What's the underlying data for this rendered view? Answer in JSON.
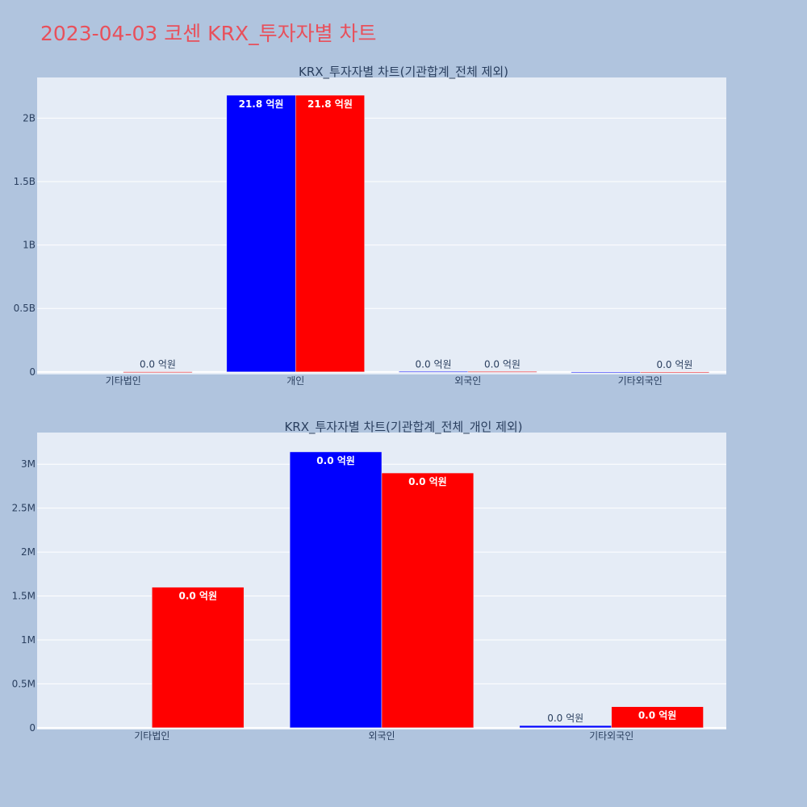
{
  "title": "2023-04-03 코센 KRX_투자자별 차트",
  "chart_data": [
    {
      "type": "bar",
      "title": "KRX_투자자별 차트(기관합계_전체 제외)",
      "categories": [
        "기타법인",
        "개인",
        "외국인",
        "기타외국인"
      ],
      "series": [
        {
          "color": "#0000ff",
          "values": [
            0,
            2180000000,
            3140000,
            25000
          ],
          "labels": [
            "",
            "21.8 억원",
            "0.0 억원",
            ""
          ]
        },
        {
          "color": "#ff0000",
          "values": [
            1600000,
            2180000000,
            2900000,
            240000
          ],
          "labels": [
            "0.0 억원",
            "21.8 억원",
            "0.0 억원",
            "0.0 억원"
          ]
        }
      ],
      "ylim": [
        -20000000,
        2320000000
      ],
      "yticks": [
        0,
        500000000,
        1000000000,
        1500000000,
        2000000000
      ],
      "yticklabels": [
        "0",
        "0.5B",
        "1B",
        "1.5B",
        "2B"
      ],
      "grid": true,
      "legend": "none"
    },
    {
      "type": "bar",
      "title": "KRX_투자자별 차트(기관합계_전체_개인 제외)",
      "categories": [
        "기타법인",
        "외국인",
        "기타외국인"
      ],
      "series": [
        {
          "color": "#0000ff",
          "values": [
            0,
            3140000,
            25000
          ],
          "labels": [
            "",
            "0.0 억원",
            "0.0 억원"
          ]
        },
        {
          "color": "#ff0000",
          "values": [
            1600000,
            2900000,
            240000
          ],
          "labels": [
            "0.0 억원",
            "0.0 억원",
            "0.0 억원"
          ]
        }
      ],
      "ylim": [
        -20000,
        3360000
      ],
      "yticks": [
        0,
        500000,
        1000000,
        1500000,
        2000000,
        2500000,
        3000000
      ],
      "yticklabels": [
        "0",
        "0.5M",
        "1M",
        "1.5M",
        "2M",
        "2.5M",
        "3M"
      ],
      "grid": true,
      "legend": "none"
    }
  ]
}
